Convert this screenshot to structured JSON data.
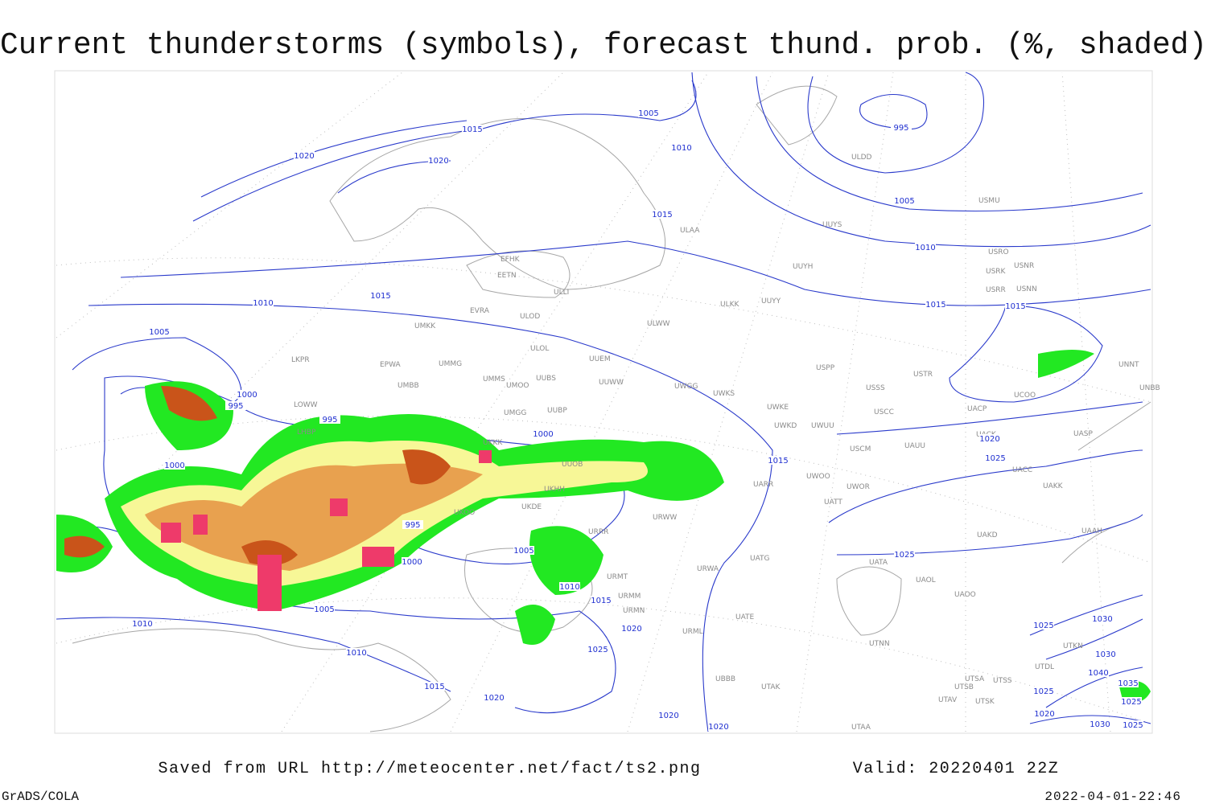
{
  "header": {
    "title": "Current thunderstorms (symbols), forecast thund. prob. (%, shaded)"
  },
  "footer": {
    "source": "Saved from URL http://meteocenter.net/fact/ts2.png",
    "valid": "Valid: 20220401 22Z",
    "software": "GrADS/COLA",
    "timestamp": "2022-04-01-22:46"
  },
  "stations": [
    "ULDD",
    "USMU",
    "UUYS",
    "ULAA",
    "UUYH",
    "USRO",
    "USRK",
    "USNR",
    "USRR",
    "USNN",
    "ULKK",
    "UUYY",
    "ULWW",
    "EFHK",
    "EETN",
    "ULLI",
    "EVRA",
    "ULOD",
    "UMKK",
    "ULOL",
    "UUEM",
    "EPWA",
    "UMMG",
    "LKPR",
    "UMMS",
    "UUBS",
    "UMOO",
    "UUWW",
    "UWGG",
    "UWKS",
    "USPP",
    "USSS",
    "USTR",
    "UNNT",
    "UNBB",
    "UCOO",
    "UACP",
    "UWKE",
    "UWKD",
    "UWUU",
    "USCC",
    "UMBB",
    "LOWW",
    "LHBP",
    "UMGG",
    "UUBP",
    "USCM",
    "UAUU",
    "UACK",
    "UASP",
    "UKKK",
    "UUOB",
    "UARR",
    "UWOO",
    "UWOR",
    "UATT",
    "UACC",
    "UAKK",
    "UKHH",
    "UKDE",
    "UKOO",
    "URWW",
    "UAKD",
    "UAAH",
    "URRR",
    "UATG",
    "URWA",
    "UATA",
    "UAOL",
    "UAOO",
    "URMT",
    "URMM",
    "URMN",
    "UATE",
    "UTNN",
    "URML",
    "UBBB",
    "UTAK",
    "UTSA",
    "UTSB",
    "UTSS",
    "UTAV",
    "UTSK",
    "UTAA",
    "UTDL",
    "UTKN"
  ],
  "isobars": [
    1015,
    1005,
    1010,
    995,
    1020,
    1020,
    1015,
    1005,
    1010,
    1015,
    1015,
    1010,
    1015,
    1005,
    1000,
    995,
    995,
    1000,
    1000,
    1015,
    1020,
    1025,
    995,
    1000,
    1005,
    1010,
    1015,
    1020,
    1025,
    1005,
    1010,
    1010,
    1015,
    1020,
    1025,
    1025,
    1030,
    1030,
    1035,
    1040,
    1025,
    1025,
    1020,
    1030,
    1025,
    1020,
    1020
  ]
}
